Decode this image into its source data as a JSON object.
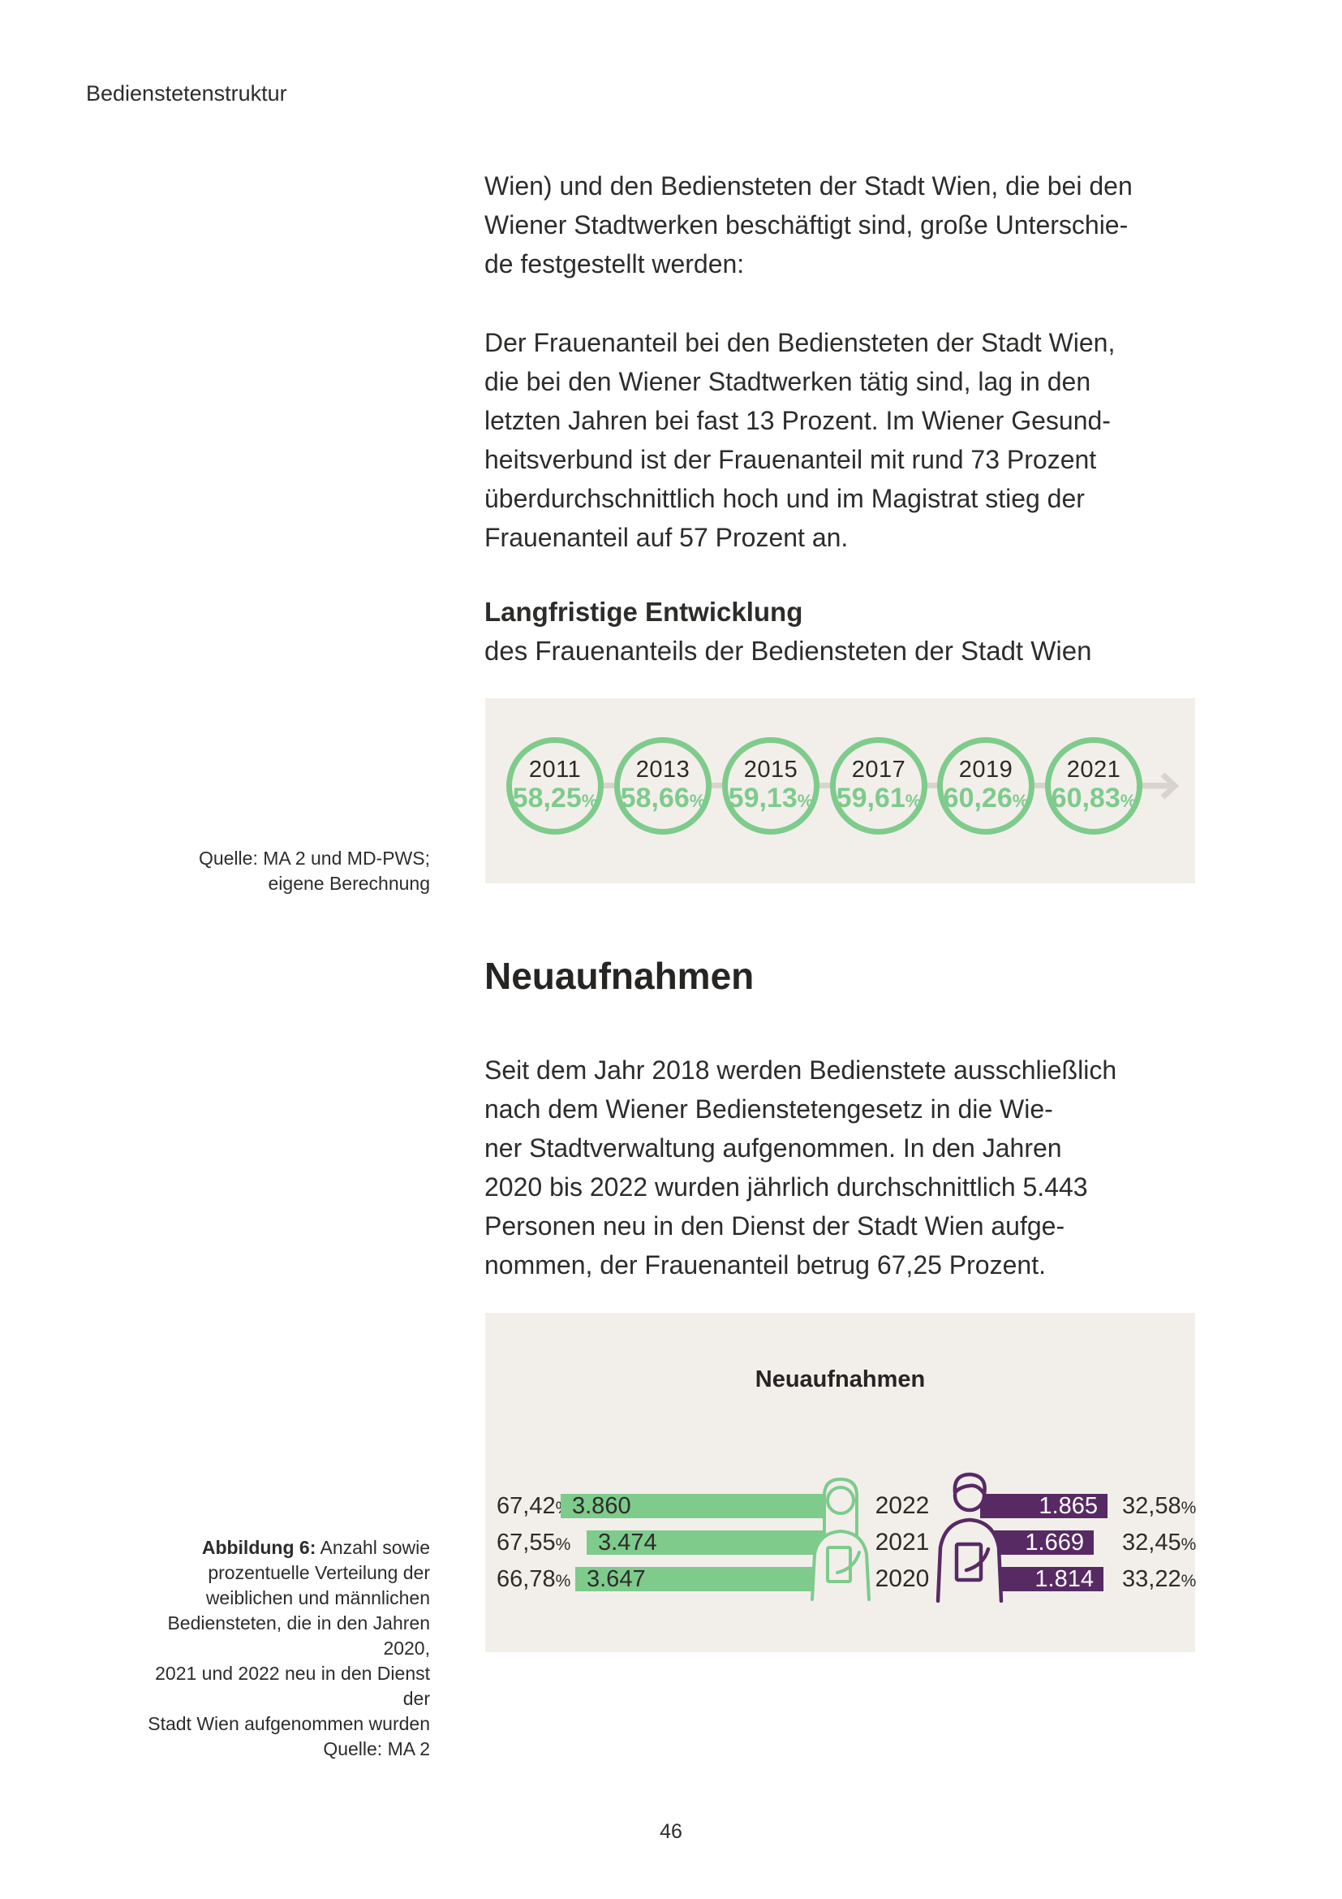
{
  "page": {
    "running_header": "Bedienstetenstruktur",
    "number": "46"
  },
  "symbols": {
    "percent": "%"
  },
  "colors": {
    "green": "#7ecb8c",
    "purple": "#582a64",
    "panel_background": "#f2efeb",
    "text": "#2d2c2b",
    "connector_gray": "#d8d4cd"
  },
  "body_text": {
    "para1": "Wien) und den Bediensteten der Stadt Wien, die bei den\nWiener Stadtwerken beschäftigt sind, große Unterschie-\nde festgestellt werden:",
    "para2": "Der Frauenanteil bei den Bediensteten der Stadt Wien,\ndie bei den Wiener Stadtwerken tätig sind, lag in den\nletzten Jahren bei fast 13 Prozent. Im Wiener Gesund-\nheitsverbund ist der Frauenanteil mit rund 73 Prozent\nüberdurchschnittlich hoch und im Magistrat stieg der\nFrauenanteil auf 57 Prozent an.",
    "section_heading_bold": "Langfristige Entwicklung",
    "section_heading_rest": "des Frauenanteils der Bediensteten der Stadt Wien",
    "h1": "Neuaufnahmen",
    "para3": "Seit dem Jahr 2018 werden Bedienstete ausschließlich\nnach dem Wiener Bedienstetengesetz in die Wie-\nner Stadtverwaltung aufgenommen. In den Jahren\n2020 bis 2022 wurden jährlich durchschnittlich 5.443\nPersonen neu in den Dienst der Stadt Wien aufge-\nnommen, der Frauenanteil betrug 67,25 Prozent."
  },
  "chart_data": [
    {
      "type": "line",
      "title": "Langfristige Entwicklung",
      "subtitle": "des Frauenanteils der Bediensteten der Stadt Wien",
      "x": [
        "2011",
        "2013",
        "2015",
        "2017",
        "2019",
        "2021"
      ],
      "values": [
        58.25,
        58.66,
        59.13,
        59.61,
        60.26,
        60.83
      ],
      "unit": "%",
      "legend_position": "none",
      "grid": false,
      "points": [
        {
          "year": "2011",
          "label": "58,25"
        },
        {
          "year": "2013",
          "label": "58,66"
        },
        {
          "year": "2015",
          "label": "59,13"
        },
        {
          "year": "2017",
          "label": "59,61"
        },
        {
          "year": "2019",
          "label": "60,26"
        },
        {
          "year": "2021",
          "label": "60,83"
        }
      ],
      "source": "Quelle: MA 2 und MD-PWS;\neigene Berechnung"
    },
    {
      "type": "bar",
      "orientation": "horizontal",
      "title": "Neuaufnahmen",
      "categories": [
        "2022",
        "2021",
        "2020"
      ],
      "series": [
        {
          "name": "weiblich",
          "color": "#7ecb8c",
          "values": [
            3860,
            3474,
            3647
          ],
          "pct": [
            67.42,
            67.55,
            66.78
          ]
        },
        {
          "name": "männlich",
          "color": "#582a64",
          "values": [
            1865,
            1669,
            1814
          ],
          "pct": [
            32.58,
            32.45,
            33.22
          ]
        }
      ],
      "rows": [
        {
          "female_pct": "67,42",
          "female_value": "3.860",
          "year": "2022",
          "male_value": "1.865",
          "male_pct": "32,58"
        },
        {
          "female_pct": "67,55",
          "female_value": "3.474",
          "year": "2021",
          "male_value": "1.669",
          "male_pct": "32,45"
        },
        {
          "female_pct": "66,78",
          "female_value": "3.647",
          "year": "2020",
          "male_value": "1.814",
          "male_pct": "33,22"
        }
      ],
      "caption_label": "Abbildung 6:",
      "caption_text": " Anzahl sowie\nprozentuelle Verteilung der\nweiblichen und männlichen\nBediensteten, die in den Jahren 2020,\n2021 und 2022 neu in den Dienst der\nStadt Wien aufgenommen wurden",
      "source": "Quelle: MA 2"
    }
  ]
}
